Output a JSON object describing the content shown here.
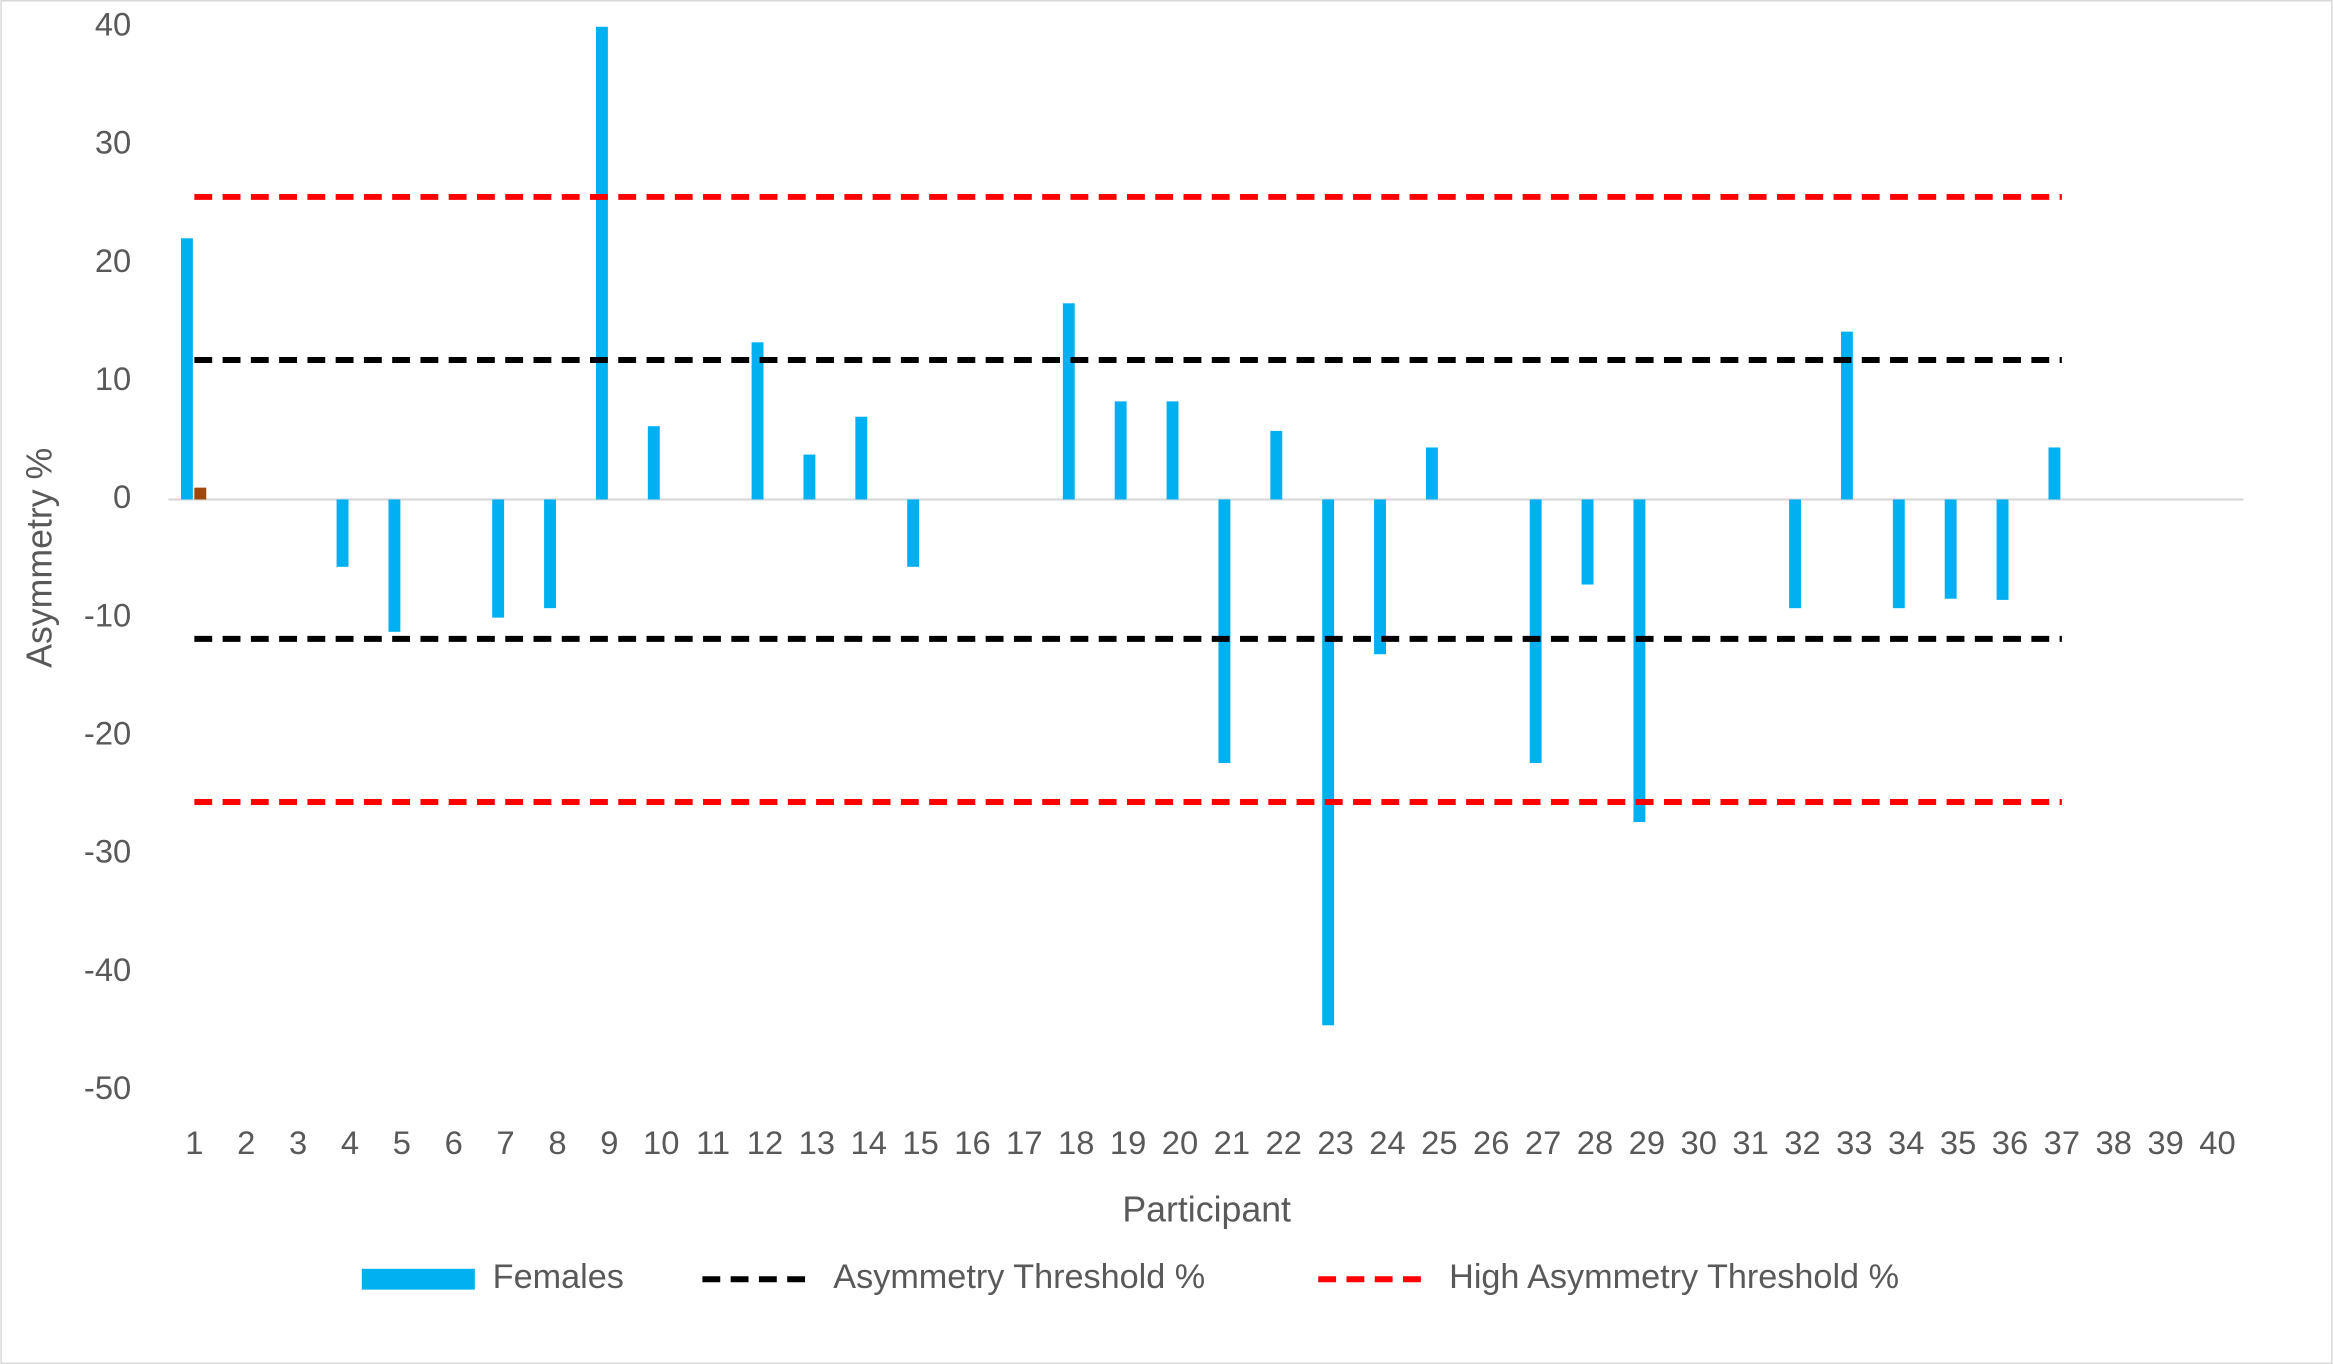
{
  "chart_data": {
    "type": "bar",
    "x_label": "Participant",
    "y_label": "Asymmetry %",
    "categories": [
      "1",
      "2",
      "3",
      "4",
      "5",
      "6",
      "7",
      "8",
      "9",
      "10",
      "11",
      "12",
      "13",
      "14",
      "15",
      "16",
      "17",
      "18",
      "19",
      "20",
      "21",
      "22",
      "23",
      "24",
      "25",
      "26",
      "27",
      "28",
      "29",
      "30",
      "31",
      "32",
      "33",
      "34",
      "35",
      "36",
      "37",
      "38",
      "39",
      "40"
    ],
    "ylim": [
      -50,
      40
    ],
    "yticks": [
      -50,
      -40,
      -30,
      -20,
      -10,
      0,
      10,
      20,
      30,
      40
    ],
    "grid": false,
    "legend": "bottom",
    "series": [
      {
        "name": "Females",
        "type": "bar",
        "color": "#00b0f0",
        "values": [
          22.1,
          null,
          null,
          -5.7,
          -11.2,
          null,
          -10,
          -9.2,
          40,
          6.2,
          null,
          13.3,
          3.8,
          7.0,
          -5.7,
          null,
          null,
          16.6,
          8.3,
          8.3,
          -22.3,
          5.8,
          -44.5,
          -13.1,
          4.4,
          null,
          -22.3,
          -7.2,
          -27.3,
          null,
          null,
          -9.2,
          14.2,
          -9.2,
          -8.4,
          -8.5,
          4.4,
          null,
          null,
          null
        ]
      },
      {
        "type": "bar",
        "color": "#9e480e",
        "values": [
          1.0,
          null,
          null,
          null,
          null,
          null,
          null,
          null,
          null,
          null,
          null,
          null,
          null,
          null,
          null,
          null,
          null,
          null,
          null,
          null,
          null,
          null,
          null,
          null,
          null,
          null,
          null,
          null,
          null,
          null,
          null,
          null,
          null,
          null,
          null,
          null,
          null,
          null,
          null,
          null
        ]
      },
      {
        "name": "Asymmetry Threshold %",
        "type": "line",
        "color": "#000000",
        "values": [
          11.8,
          11.8,
          11.8,
          11.8,
          11.8,
          11.8,
          11.8,
          11.8,
          11.8,
          11.8,
          11.8,
          11.8,
          11.8,
          11.8,
          11.8,
          11.8,
          11.8,
          11.8,
          11.8,
          11.8,
          11.8,
          11.8,
          11.8,
          11.8,
          11.8,
          11.8,
          11.8,
          11.8,
          11.8,
          11.8,
          11.8,
          11.8,
          11.8,
          11.8,
          11.8,
          11.8,
          11.8,
          null,
          null,
          null
        ]
      },
      {
        "type": "line",
        "color": "#000000",
        "values": [
          -11.8,
          -11.8,
          -11.8,
          -11.8,
          -11.8,
          -11.8,
          -11.8,
          -11.8,
          -11.8,
          -11.8,
          -11.8,
          -11.8,
          -11.8,
          -11.8,
          -11.8,
          -11.8,
          -11.8,
          -11.8,
          -11.8,
          -11.8,
          -11.8,
          -11.8,
          -11.8,
          -11.8,
          -11.8,
          -11.8,
          -11.8,
          -11.8,
          -11.8,
          -11.8,
          -11.8,
          -11.8,
          -11.8,
          -11.8,
          -11.8,
          -11.8,
          -11.8,
          null,
          null,
          null
        ]
      },
      {
        "name": "High Asymmetry Threshold %",
        "type": "line",
        "color": "#ff0000",
        "values": [
          25.6,
          25.6,
          25.6,
          25.6,
          25.6,
          25.6,
          25.6,
          25.6,
          25.6,
          25.6,
          25.6,
          25.6,
          25.6,
          25.6,
          25.6,
          25.6,
          25.6,
          25.6,
          25.6,
          25.6,
          25.6,
          25.6,
          25.6,
          25.6,
          25.6,
          25.6,
          25.6,
          25.6,
          25.6,
          25.6,
          25.6,
          25.6,
          25.6,
          25.6,
          25.6,
          25.6,
          25.6,
          null,
          null,
          null
        ]
      },
      {
        "type": "line",
        "color": "#ff0000",
        "values": [
          -25.6,
          -25.6,
          -25.6,
          -25.6,
          -25.6,
          -25.6,
          -25.6,
          -25.6,
          -25.6,
          -25.6,
          -25.6,
          -25.6,
          -25.6,
          -25.6,
          -25.6,
          -25.6,
          -25.6,
          -25.6,
          -25.6,
          -25.6,
          -25.6,
          -25.6,
          -25.6,
          -25.6,
          -25.6,
          -25.6,
          -25.6,
          -25.6,
          -25.6,
          -25.6,
          -25.6,
          -25.6,
          -25.6,
          -25.6,
          -25.6,
          -25.6,
          -25.6,
          null,
          null,
          null
        ]
      }
    ]
  }
}
